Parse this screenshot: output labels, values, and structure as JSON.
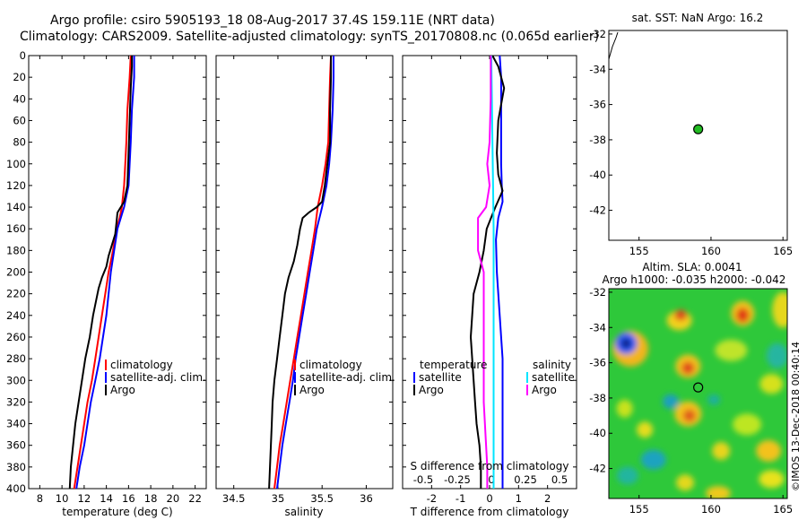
{
  "header": {
    "line1": "Argo profile: csiro 5905193_18 08-Aug-2017 37.4S 159.11E (NRT data)",
    "line2": "Climatology: CARS2009. Satellite-adjusted climatology: synTS_20170808.nc (0.065d earlier)"
  },
  "map_top": {
    "title": "sat. SST: NaN Argo: 16.2",
    "xticks": [
      "155",
      "160",
      "165"
    ],
    "yticks": [
      "-32",
      "-34",
      "-36",
      "-38",
      "-40",
      "-42"
    ],
    "lon_range": [
      152.9,
      165.3
    ],
    "lat_range": [
      -43.7,
      -31.8
    ],
    "argo_lon": 159.11,
    "argo_lat": -37.4,
    "marker_color": "#22bb22"
  },
  "map_bottom": {
    "title1": "Altim. SLA: 0.0041",
    "title2": "Argo h1000: -0.035 h2000: -0.042",
    "xticks": [
      "155",
      "160",
      "165"
    ],
    "yticks": [
      "-32",
      "-34",
      "-36",
      "-38",
      "-40",
      "-42"
    ],
    "lon_range": [
      152.9,
      165.3
    ],
    "lat_range": [
      -43.7,
      -31.8
    ],
    "argo_lon": 159.11,
    "argo_lat": -37.4
  },
  "watermark": "©IMOS 13-Dec-2018 00:40:14",
  "colors": {
    "climatology": "#ff0000",
    "satellite": "#0000ff",
    "argo": "#000000",
    "s_satellite": "#00e5ff",
    "s_argo": "#ff00ff",
    "green_bg": "#2ec83a"
  },
  "chart_data": [
    {
      "type": "line",
      "name": "temperature",
      "xlabel": "temperature (deg C)",
      "ylabel": "",
      "xlim": [
        7,
        23
      ],
      "ylim": [
        0,
        400
      ],
      "xticks": [
        "8",
        "10",
        "12",
        "14",
        "16",
        "18",
        "20",
        "22"
      ],
      "depth_ticks": [
        "0",
        "20",
        "40",
        "60",
        "80",
        "100",
        "120",
        "140",
        "160",
        "180",
        "200",
        "220",
        "240",
        "260",
        "280",
        "300",
        "320",
        "340",
        "360",
        "380",
        "400"
      ],
      "legend": [
        "climatology",
        "satellite-adj. clim.",
        "Argo"
      ],
      "series": [
        {
          "name": "climatology",
          "depth": [
            0,
            20,
            50,
            80,
            100,
            120,
            140,
            150,
            160,
            180,
            200,
            220,
            240,
            260,
            280,
            300,
            320,
            340,
            360,
            380,
            400
          ],
          "values": [
            16.2,
            16.1,
            15.9,
            15.8,
            15.7,
            15.6,
            15.4,
            15.2,
            14.9,
            14.6,
            14.2,
            13.9,
            13.6,
            13.3,
            13.0,
            12.7,
            12.3,
            12.0,
            11.7,
            11.4,
            11.1
          ]
        },
        {
          "name": "satellite-adj. clim.",
          "depth": [
            0,
            20,
            50,
            80,
            100,
            120,
            140,
            150,
            160,
            180,
            200,
            220,
            240,
            260,
            280,
            300,
            320,
            340,
            360,
            380,
            400
          ],
          "values": [
            16.5,
            16.5,
            16.3,
            16.2,
            16.1,
            16.0,
            15.6,
            15.3,
            15.0,
            14.7,
            14.4,
            14.2,
            14.0,
            13.7,
            13.4,
            13.0,
            12.6,
            12.3,
            12.0,
            11.6,
            11.3
          ]
        },
        {
          "name": "Argo",
          "depth": [
            0,
            10,
            30,
            60,
            90,
            120,
            135,
            145,
            155,
            165,
            175,
            185,
            195,
            205,
            215,
            225,
            240,
            260,
            280,
            300,
            320,
            340,
            360,
            380,
            400
          ],
          "values": [
            16.3,
            16.3,
            16.2,
            16.1,
            16.0,
            15.9,
            15.6,
            15.0,
            14.9,
            14.8,
            14.5,
            14.2,
            14.0,
            13.6,
            13.3,
            13.1,
            12.8,
            12.5,
            12.1,
            11.8,
            11.5,
            11.2,
            11.0,
            10.8,
            10.7
          ]
        }
      ]
    },
    {
      "type": "line",
      "name": "salinity",
      "xlabel": "salinity",
      "ylabel": "",
      "xlim": [
        34.3,
        36.3
      ],
      "ylim": [
        0,
        400
      ],
      "xticks": [
        "34.5",
        "35",
        "35.5",
        "36"
      ],
      "legend": [
        "climatology",
        "satellite-adj. clim.",
        "Argo"
      ],
      "series": [
        {
          "name": "climatology",
          "depth": [
            0,
            20,
            50,
            80,
            100,
            120,
            140,
            160,
            180,
            200,
            220,
            240,
            260,
            280,
            300,
            320,
            340,
            360,
            380,
            400
          ],
          "values": [
            35.6,
            35.59,
            35.58,
            35.57,
            35.54,
            35.5,
            35.45,
            35.42,
            35.38,
            35.34,
            35.3,
            35.26,
            35.22,
            35.18,
            35.14,
            35.1,
            35.06,
            35.02,
            34.99,
            34.96
          ]
        },
        {
          "name": "satellite-adj. clim.",
          "depth": [
            0,
            20,
            50,
            80,
            100,
            120,
            140,
            160,
            180,
            200,
            220,
            240,
            260,
            280,
            300,
            320,
            340,
            360,
            380,
            400
          ],
          "values": [
            35.63,
            35.63,
            35.62,
            35.6,
            35.58,
            35.55,
            35.5,
            35.44,
            35.4,
            35.36,
            35.32,
            35.28,
            35.24,
            35.2,
            35.17,
            35.13,
            35.09,
            35.05,
            35.02,
            34.99
          ]
        },
        {
          "name": "Argo",
          "depth": [
            0,
            20,
            50,
            80,
            100,
            120,
            135,
            140,
            145,
            150,
            160,
            175,
            190,
            205,
            220,
            240,
            260,
            280,
            300,
            320,
            340,
            360,
            380,
            400
          ],
          "values": [
            35.6,
            35.6,
            35.59,
            35.59,
            35.56,
            35.53,
            35.5,
            35.44,
            35.35,
            35.28,
            35.25,
            35.22,
            35.18,
            35.12,
            35.08,
            35.05,
            35.02,
            34.99,
            34.96,
            34.94,
            34.93,
            34.92,
            34.91,
            34.9
          ]
        }
      ]
    },
    {
      "type": "line",
      "name": "differences",
      "xlabel": "T difference from climatology",
      "secondary_xlabel": "S difference from climatology",
      "xlim": [
        -3,
        3
      ],
      "s_xlim": [
        -0.75,
        0.75
      ],
      "ylim": [
        0,
        400
      ],
      "xticks": [
        "-2",
        "-1",
        "0",
        "1",
        "2"
      ],
      "s_xticks": [
        "-0.5",
        "-0.25",
        "0",
        "0.25",
        "0.5"
      ],
      "legend_left_title": "temperature",
      "legend_left": [
        "satellite",
        "Argo"
      ],
      "legend_right_title": "salinity",
      "legend_right": [
        "satellite",
        "Argo"
      ],
      "series": [
        {
          "name": "T satellite",
          "axis": "T",
          "depth": [
            0,
            20,
            50,
            80,
            100,
            120,
            135,
            150,
            170,
            200,
            240,
            280,
            320,
            360,
            400
          ],
          "values": [
            0.35,
            0.4,
            0.4,
            0.4,
            0.4,
            0.42,
            0.45,
            0.3,
            0.22,
            0.25,
            0.35,
            0.45,
            0.45,
            0.45,
            0.45
          ]
        },
        {
          "name": "T Argo",
          "axis": "T",
          "depth": [
            0,
            10,
            30,
            60,
            90,
            110,
            125,
            140,
            150,
            160,
            180,
            200,
            220,
            240,
            260,
            280,
            300,
            320,
            340,
            360,
            380,
            400
          ],
          "values": [
            0.1,
            0.3,
            0.5,
            0.3,
            0.25,
            0.3,
            0.45,
            0.2,
            0.05,
            -0.1,
            -0.2,
            -0.35,
            -0.55,
            -0.6,
            -0.65,
            -0.6,
            -0.55,
            -0.5,
            -0.45,
            -0.35,
            -0.3,
            -0.3
          ]
        },
        {
          "name": "S satellite",
          "axis": "S",
          "depth": [
            0,
            40,
            80,
            120,
            160,
            200,
            240,
            280,
            320,
            360,
            400
          ],
          "values": [
            0.015,
            0.02,
            0.025,
            0.03,
            0.035,
            0.035,
            0.035,
            0.035,
            0.035,
            0.035,
            0.035
          ]
        },
        {
          "name": "S Argo",
          "axis": "S",
          "depth": [
            0,
            40,
            80,
            100,
            120,
            140,
            150,
            160,
            180,
            200,
            220,
            240,
            260,
            280,
            300,
            320,
            340,
            360,
            380,
            400
          ],
          "values": [
            0.01,
            0.01,
            0.0,
            -0.02,
            0.0,
            -0.03,
            -0.1,
            -0.1,
            -0.1,
            -0.05,
            -0.05,
            -0.05,
            -0.05,
            -0.05,
            -0.05,
            -0.05,
            -0.04,
            -0.03,
            -0.02,
            -0.02
          ]
        }
      ]
    }
  ]
}
